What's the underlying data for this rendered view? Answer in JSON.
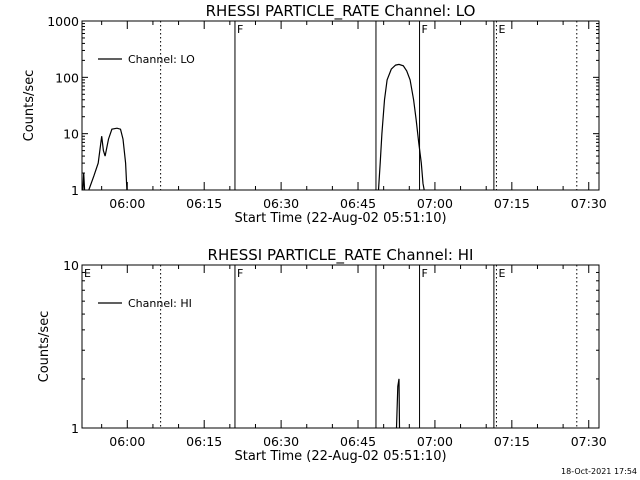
{
  "timestamp": "18-Oct-2021 17:54",
  "chart_data": [
    {
      "type": "line",
      "title": "RHESSI PARTICLE_RATE Channel: LO",
      "xlabel": "Start Time (22-Aug-02 05:51:10)",
      "ylabel": "Counts/sec",
      "yscale": "log",
      "ylim": [
        1,
        1000
      ],
      "yticks": [
        1,
        10,
        100,
        1000
      ],
      "ytick_labels": [
        "1",
        "10",
        "100",
        "1000"
      ],
      "xlim": [
        "05:51:10",
        "07:32:00"
      ],
      "xticks": [
        "06:00",
        "06:15",
        "06:30",
        "06:45",
        "07:00",
        "07:15",
        "07:30"
      ],
      "legend": {
        "label": "Channel: LO",
        "placement": "top-left"
      },
      "grid": false,
      "markers": [
        {
          "time": "06:06:30",
          "label": "",
          "style": "dotted"
        },
        {
          "time": "06:21:00",
          "label": "F",
          "style": "solid"
        },
        {
          "time": "06:48:30",
          "label": "",
          "style": "solid"
        },
        {
          "time": "06:57:00",
          "label": "F",
          "style": "solid"
        },
        {
          "time": "07:11:30",
          "label": "",
          "style": "solid"
        },
        {
          "time": "07:12:00",
          "label": "E",
          "style": "dotted"
        },
        {
          "time": "07:27:40",
          "label": "",
          "style": "dotted"
        }
      ],
      "series": [
        {
          "name": "Channel: LO",
          "segments": [
            [
              [
                "05:51:20",
                1
              ],
              [
                "05:51:30",
                2
              ],
              [
                "05:51:40",
                1
              ]
            ],
            [
              [
                "05:52:30",
                1
              ],
              [
                "05:53:30",
                1.8
              ],
              [
                "05:54:20",
                3
              ],
              [
                "05:55:00",
                9
              ],
              [
                "05:55:20",
                5
              ],
              [
                "05:55:40",
                4
              ],
              [
                "05:56:20",
                8
              ],
              [
                "05:57:00",
                12
              ],
              [
                "05:58:00",
                12.5
              ],
              [
                "05:58:40",
                12
              ],
              [
                "05:59:10",
                8
              ],
              [
                "05:59:40",
                3
              ],
              [
                "05:59:55",
                1
              ]
            ],
            [
              [
                "06:49:00",
                1
              ],
              [
                "06:49:20",
                3
              ],
              [
                "06:49:40",
                10
              ],
              [
                "06:50:10",
                40
              ],
              [
                "06:50:40",
                90
              ],
              [
                "06:51:30",
                140
              ],
              [
                "06:52:20",
                165
              ],
              [
                "06:53:00",
                170
              ],
              [
                "06:53:50",
                160
              ],
              [
                "06:54:30",
                130
              ],
              [
                "06:55:10",
                90
              ],
              [
                "06:55:50",
                40
              ],
              [
                "06:56:20",
                18
              ],
              [
                "06:56:50",
                7
              ],
              [
                "06:57:20",
                3
              ],
              [
                "06:57:40",
                1.3
              ],
              [
                "06:57:55",
                1
              ]
            ]
          ]
        }
      ]
    },
    {
      "type": "line",
      "title": "RHESSI PARTICLE_RATE Channel: HI",
      "xlabel": "Start Time (22-Aug-02 05:51:10)",
      "ylabel": "Counts/sec",
      "yscale": "log",
      "ylim": [
        1,
        10
      ],
      "yticks": [
        1,
        10
      ],
      "ytick_labels": [
        "1",
        "10"
      ],
      "xlim": [
        "05:51:10",
        "07:32:00"
      ],
      "xticks": [
        "06:00",
        "06:15",
        "06:30",
        "06:45",
        "07:00",
        "07:15",
        "07:30"
      ],
      "legend": {
        "label": "Channel: HI",
        "placement": "top-left"
      },
      "grid": false,
      "markers": [
        {
          "time": "05:51:10",
          "label": "E",
          "style": "none"
        },
        {
          "time": "06:06:30",
          "label": "",
          "style": "dotted"
        },
        {
          "time": "06:21:00",
          "label": "F",
          "style": "solid"
        },
        {
          "time": "06:48:30",
          "label": "",
          "style": "solid"
        },
        {
          "time": "06:57:00",
          "label": "F",
          "style": "solid"
        },
        {
          "time": "07:11:30",
          "label": "",
          "style": "solid"
        },
        {
          "time": "07:12:00",
          "label": "E",
          "style": "dotted"
        },
        {
          "time": "07:27:40",
          "label": "",
          "style": "dotted"
        }
      ],
      "series": [
        {
          "name": "Channel: HI",
          "segments": [
            [
              [
                "06:52:30",
                1
              ],
              [
                "06:52:45",
                1.8
              ],
              [
                "06:53:00",
                2
              ],
              [
                "06:53:05",
                1
              ]
            ]
          ]
        }
      ]
    }
  ]
}
